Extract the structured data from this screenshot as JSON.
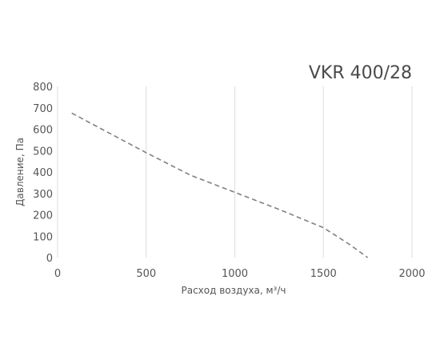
{
  "chart_data": {
    "type": "line",
    "title": "VKR 400/28",
    "xlabel": "Расход воздуха, м³/ч",
    "ylabel": "Давление, Па",
    "xlim": [
      0,
      2000
    ],
    "ylim": [
      0,
      800
    ],
    "x_ticks": [
      0,
      500,
      1000,
      1500,
      2000
    ],
    "y_ticks": [
      0,
      100,
      200,
      300,
      400,
      500,
      600,
      700,
      800
    ],
    "grid": "vertical",
    "series": [
      {
        "line_style": "dashed",
        "color": "#808080",
        "x": [
          80,
          250,
          500,
          750,
          1000,
          1250,
          1500,
          1650,
          1750
        ],
        "y": [
          675,
          600,
          490,
          385,
          305,
          225,
          140,
          60,
          0
        ]
      }
    ]
  },
  "colors": {
    "grid": "#dddddd",
    "text": "#555555",
    "line": "#808080"
  }
}
